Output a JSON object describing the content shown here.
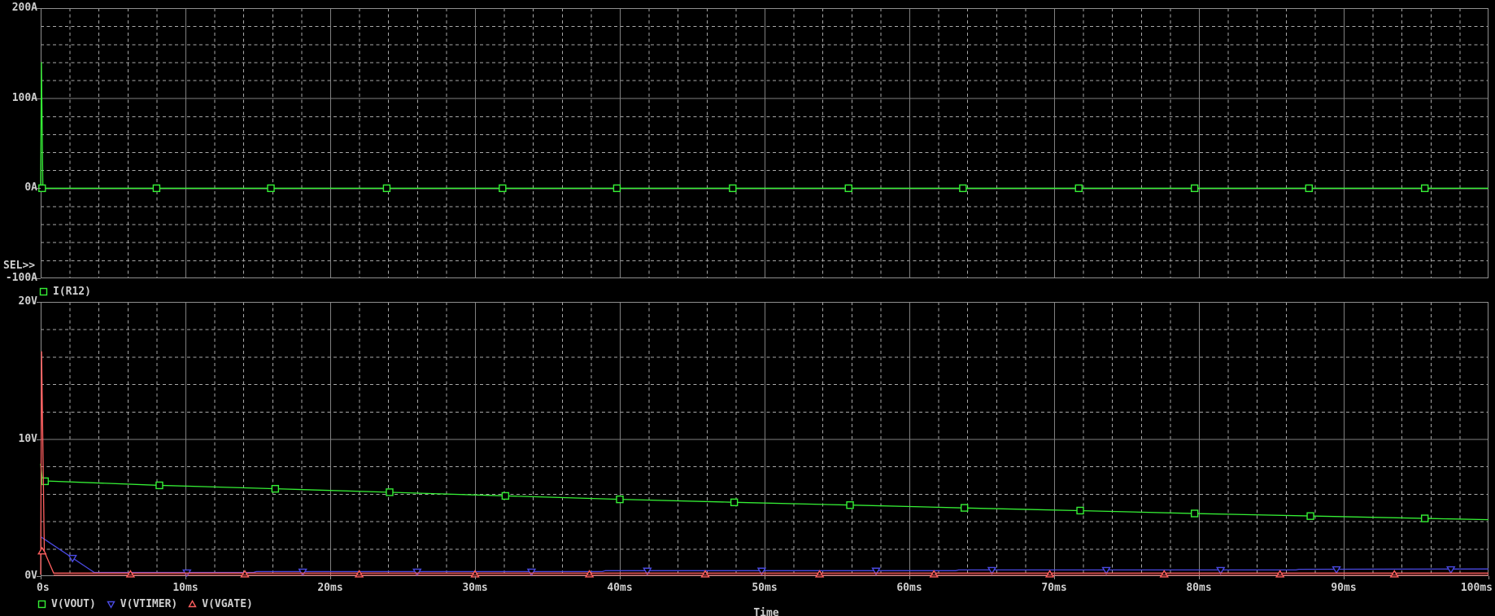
{
  "window": {
    "background": "#000000",
    "text_color": "#cfcfcf",
    "sel_indicator": "SEL>>"
  },
  "legends": {
    "top": [
      {
        "label": "I(R12)",
        "marker": "square",
        "color": "#35ef35"
      }
    ],
    "bottom": [
      {
        "label": "V(VOUT)",
        "marker": "square",
        "color": "#35ef35"
      },
      {
        "label": "V(VTIMER)",
        "marker": "triangle-down",
        "color": "#4a4ae2"
      },
      {
        "label": "V(VGATE)",
        "marker": "triangle-up",
        "color": "#ff5f5f"
      }
    ]
  },
  "chart_data": [
    {
      "type": "line",
      "plot": "top",
      "selected": true,
      "xlim_ms": [
        0,
        100
      ],
      "ylim": [
        -100,
        200
      ],
      "y_unit": "A",
      "ytick_labels": [
        "200A",
        "100A",
        "0A",
        "-100A"
      ],
      "ytick_values": [
        200,
        100,
        0,
        -100
      ],
      "y_major": 100,
      "y_minor": 20,
      "x_major_ms": 10,
      "x_minor_ms": 2,
      "grid": true,
      "series": [
        {
          "name": "I(R12)",
          "color": "#35ef35",
          "marker": "square",
          "points": [
            [
              0,
              0
            ],
            [
              0.05,
              140
            ],
            [
              0.15,
              0
            ],
            [
              100,
              0
            ]
          ],
          "markers": [
            [
              0.1,
              0
            ],
            [
              8,
              0
            ],
            [
              15.9,
              0
            ],
            [
              23.9,
              0
            ],
            [
              31.9,
              0
            ],
            [
              39.8,
              0
            ],
            [
              47.8,
              0
            ],
            [
              55.8,
              0
            ],
            [
              63.7,
              0
            ],
            [
              71.7,
              0
            ],
            [
              79.7,
              0
            ],
            [
              87.6,
              0
            ],
            [
              95.6,
              0
            ]
          ]
        }
      ]
    },
    {
      "type": "line",
      "plot": "bottom",
      "selected": false,
      "xlabel": "Time",
      "xlim_ms": [
        0,
        100
      ],
      "ylim": [
        0,
        20
      ],
      "y_unit": "V",
      "ytick_labels": [
        "20V",
        "10V",
        "0V"
      ],
      "ytick_values": [
        20,
        10,
        0
      ],
      "xtick_labels": [
        "0s",
        "10ms",
        "20ms",
        "30ms",
        "40ms",
        "50ms",
        "60ms",
        "70ms",
        "80ms",
        "90ms",
        "100ms"
      ],
      "xtick_values_ms": [
        0,
        10,
        20,
        30,
        40,
        50,
        60,
        70,
        80,
        90,
        100
      ],
      "y_major": 10,
      "y_minor": 2,
      "x_major_ms": 10,
      "x_minor_ms": 2,
      "grid": true,
      "series": [
        {
          "name": "V(VOUT)",
          "color": "#35ef35",
          "marker": "square",
          "points": [
            [
              0,
              8.2
            ],
            [
              0.12,
              6.95
            ],
            [
              8,
              6.63
            ],
            [
              16,
              6.38
            ],
            [
              24,
              6.12
            ],
            [
              32,
              5.86
            ],
            [
              40,
              5.6
            ],
            [
              48,
              5.38
            ],
            [
              56,
              5.18
            ],
            [
              64,
              4.97
            ],
            [
              72,
              4.77
            ],
            [
              80,
              4.56
            ],
            [
              88,
              4.38
            ],
            [
              96,
              4.2
            ],
            [
              100,
              4.12
            ]
          ],
          "markers": [
            [
              0.3,
              6.92
            ],
            [
              8.2,
              6.62
            ],
            [
              16.2,
              6.37
            ],
            [
              24.1,
              6.12
            ],
            [
              32.1,
              5.85
            ],
            [
              40,
              5.6
            ],
            [
              47.9,
              5.38
            ],
            [
              55.9,
              5.18
            ],
            [
              63.8,
              4.98
            ],
            [
              71.8,
              4.78
            ],
            [
              79.7,
              4.57
            ],
            [
              87.7,
              4.38
            ],
            [
              95.6,
              4.21
            ]
          ]
        },
        {
          "name": "V(VTIMER)",
          "color": "#4a4ae2",
          "marker": "triangle-down",
          "points": [
            [
              0,
              2.87
            ],
            [
              3.7,
              0.27
            ],
            [
              14.7,
              0.27
            ],
            [
              14.9,
              0.33
            ],
            [
              38.8,
              0.33
            ],
            [
              39,
              0.4
            ],
            [
              63.2,
              0.4
            ],
            [
              63.4,
              0.45
            ],
            [
              86.7,
              0.45
            ],
            [
              86.9,
              0.5
            ],
            [
              100,
              0.52
            ]
          ],
          "markers": [
            [
              2.2,
              1.33
            ],
            [
              10.1,
              0.27
            ],
            [
              18.1,
              0.33
            ],
            [
              26,
              0.33
            ],
            [
              33.9,
              0.33
            ],
            [
              41.9,
              0.4
            ],
            [
              49.8,
              0.4
            ],
            [
              57.7,
              0.4
            ],
            [
              65.7,
              0.45
            ],
            [
              73.6,
              0.45
            ],
            [
              81.5,
              0.45
            ],
            [
              89.5,
              0.5
            ],
            [
              97.4,
              0.5
            ]
          ]
        },
        {
          "name": "V(VGATE)",
          "color": "#ff5f5f",
          "marker": "triangle-up",
          "points": [
            [
              0,
              0.1
            ],
            [
              0.06,
              16.4
            ],
            [
              0.25,
              1.8
            ],
            [
              0.9,
              0.22
            ],
            [
              100,
              0.22
            ]
          ],
          "markers": [
            [
              0.1,
              1.8
            ],
            [
              6.2,
              0.12
            ],
            [
              14.1,
              0.12
            ],
            [
              22,
              0.12
            ],
            [
              30,
              0.12
            ],
            [
              37.9,
              0.12
            ],
            [
              45.9,
              0.12
            ],
            [
              53.8,
              0.12
            ],
            [
              61.7,
              0.12
            ],
            [
              69.7,
              0.12
            ],
            [
              77.6,
              0.12
            ],
            [
              85.6,
              0.12
            ],
            [
              93.5,
              0.12
            ]
          ]
        },
        {
          "name": "V(VGATE)-lower-edge",
          "ghost": true,
          "color": "#ff5f5f",
          "marker": null,
          "points": [
            [
              0.9,
              0.07
            ],
            [
              100,
              0.07
            ]
          ],
          "markers": []
        }
      ]
    }
  ]
}
